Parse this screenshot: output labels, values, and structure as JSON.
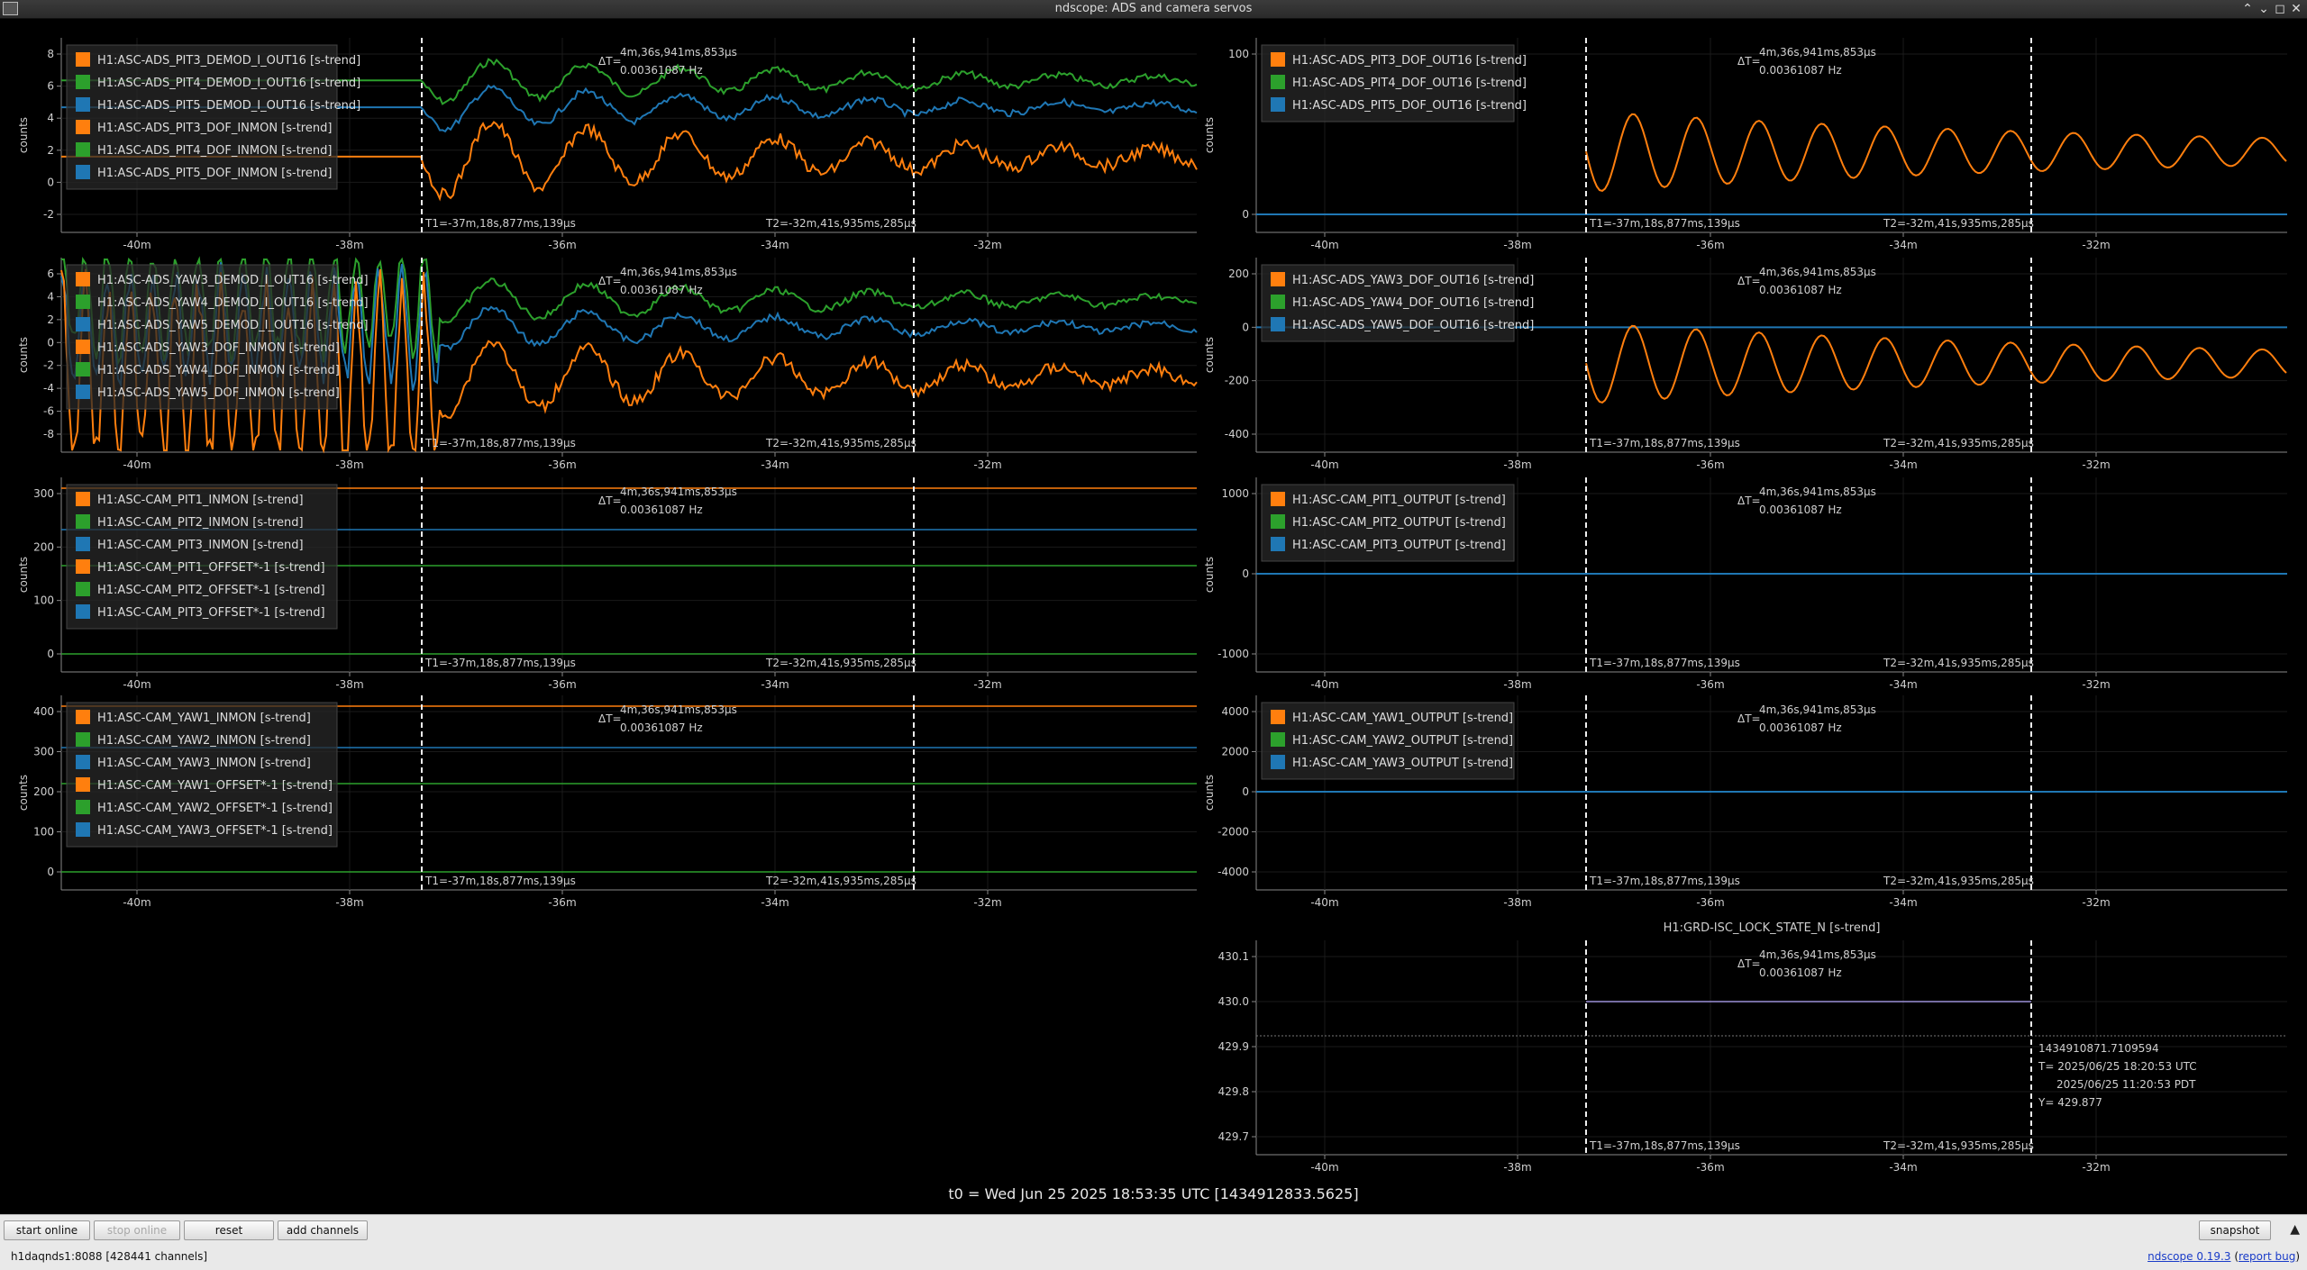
{
  "window": {
    "title": "ndscope: ADS and camera servos"
  },
  "t0_label": "t0 = Wed Jun 25 2025 18:53:35 UTC [1434912833.5625]",
  "delta": {
    "label": "ΔT=",
    "time": "4m,36s,941ms,853μs",
    "freq": "0.00361087 Hz"
  },
  "cursors": {
    "t1": "T1=-37m,18s,877ms,139μs",
    "t2": "T2=-32m,41s,935ms,285μs"
  },
  "plots": [
    {
      "id": "p1",
      "ylabel": "counts",
      "yticks": [
        "8",
        "6",
        "4",
        "2",
        "0",
        "-2"
      ],
      "legend": [
        "H1:ASC-ADS_PIT3_DEMOD_I_OUT16 [s-trend]",
        "H1:ASC-ADS_PIT4_DEMOD_I_OUT16 [s-trend]",
        "H1:ASC-ADS_PIT5_DEMOD_I_OUT16 [s-trend]",
        "H1:ASC-ADS_PIT3_DOF_INMON [s-trend]",
        "H1:ASC-ADS_PIT4_DOF_INMON [s-trend]",
        "H1:ASC-ADS_PIT5_DOF_INMON [s-trend]"
      ]
    },
    {
      "id": "p2",
      "ylabel": "counts",
      "yticks": [
        "100",
        "0"
      ],
      "legend": [
        "H1:ASC-ADS_PIT3_DOF_OUT16 [s-trend]",
        "H1:ASC-ADS_PIT4_DOF_OUT16 [s-trend]",
        "H1:ASC-ADS_PIT5_DOF_OUT16 [s-trend]"
      ]
    },
    {
      "id": "p3",
      "ylabel": "counts",
      "yticks": [
        "6",
        "4",
        "2",
        "0",
        "-2",
        "-4",
        "-6",
        "-8"
      ],
      "legend": [
        "H1:ASC-ADS_YAW3_DEMOD_I_OUT16 [s-trend]",
        "H1:ASC-ADS_YAW4_DEMOD_I_OUT16 [s-trend]",
        "H1:ASC-ADS_YAW5_DEMOD_I_OUT16 [s-trend]",
        "H1:ASC-ADS_YAW3_DOF_INMON [s-trend]",
        "H1:ASC-ADS_YAW4_DOF_INMON [s-trend]",
        "H1:ASC-ADS_YAW5_DOF_INMON [s-trend]"
      ]
    },
    {
      "id": "p4",
      "ylabel": "counts",
      "yticks": [
        "200",
        "0",
        "-200",
        "-400"
      ],
      "legend": [
        "H1:ASC-ADS_YAW3_DOF_OUT16 [s-trend]",
        "H1:ASC-ADS_YAW4_DOF_OUT16 [s-trend]",
        "H1:ASC-ADS_YAW5_DOF_OUT16 [s-trend]"
      ]
    },
    {
      "id": "p5",
      "ylabel": "counts",
      "yticks": [
        "300",
        "200",
        "100",
        "0"
      ],
      "legend": [
        "H1:ASC-CAM_PIT1_INMON [s-trend]",
        "H1:ASC-CAM_PIT2_INMON [s-trend]",
        "H1:ASC-CAM_PIT3_INMON [s-trend]",
        "H1:ASC-CAM_PIT1_OFFSET*-1 [s-trend]",
        "H1:ASC-CAM_PIT2_OFFSET*-1 [s-trend]",
        "H1:ASC-CAM_PIT3_OFFSET*-1 [s-trend]"
      ]
    },
    {
      "id": "p6",
      "ylabel": "counts",
      "yticks": [
        "1000",
        "0",
        "-1000"
      ],
      "legend": [
        "H1:ASC-CAM_PIT1_OUTPUT [s-trend]",
        "H1:ASC-CAM_PIT2_OUTPUT [s-trend]",
        "H1:ASC-CAM_PIT3_OUTPUT [s-trend]"
      ]
    },
    {
      "id": "p7",
      "ylabel": "counts",
      "yticks": [
        "400",
        "300",
        "200",
        "100",
        "0"
      ],
      "legend": [
        "H1:ASC-CAM_YAW1_INMON [s-trend]",
        "H1:ASC-CAM_YAW2_INMON [s-trend]",
        "H1:ASC-CAM_YAW3_INMON [s-trend]",
        "H1:ASC-CAM_YAW1_OFFSET*-1 [s-trend]",
        "H1:ASC-CAM_YAW2_OFFSET*-1 [s-trend]",
        "H1:ASC-CAM_YAW3_OFFSET*-1 [s-trend]"
      ]
    },
    {
      "id": "p8",
      "ylabel": "counts",
      "yticks": [
        "4000",
        "2000",
        "0",
        "-2000",
        "-4000"
      ],
      "legend": [
        "H1:ASC-CAM_YAW1_OUTPUT [s-trend]",
        "H1:ASC-CAM_YAW2_OUTPUT [s-trend]",
        "H1:ASC-CAM_YAW3_OUTPUT [s-trend]"
      ]
    },
    {
      "id": "p9",
      "title": "H1:GRD-ISC_LOCK_STATE_N [s-trend]",
      "ylabel": "",
      "yticks": [
        "430.1",
        "430.0",
        "429.9",
        "429.8",
        "429.7"
      ],
      "legend": []
    }
  ],
  "xticks": [
    "-40m",
    "-38m",
    "-36m",
    "-34m",
    "-32m"
  ],
  "series_colors": [
    "#ff7f0e",
    "#2ca02c",
    "#1f77b4"
  ],
  "cursor_info": [
    "1434910871.7109594",
    "T= 2025/06/25 18:20:53 UTC",
    "2025/06/25 11:20:53 PDT",
    "Y= 429.877"
  ],
  "toolbar": {
    "start_online": "start online",
    "stop_online": "stop online",
    "reset": "reset",
    "add_channels": "add channels",
    "snapshot": "snapshot",
    "status": "h1daqnds1:8088  [428441 channels]",
    "version_link": "ndscope 0.19.3",
    "report_bug": "report bug"
  }
}
